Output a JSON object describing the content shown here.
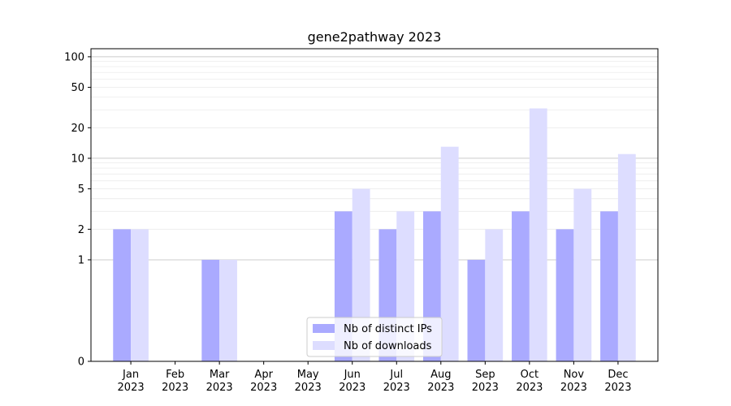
{
  "chart_data": {
    "type": "bar",
    "title": "gene2pathway 2023",
    "xlabel": "",
    "ylabel": "",
    "yscale": "symlog",
    "ylim": [
      0,
      120
    ],
    "yticks": [
      0,
      1,
      2,
      5,
      10,
      20,
      50,
      100
    ],
    "ytick_labels": [
      "0",
      "1",
      "2",
      "5",
      "10",
      "20",
      "50",
      "100"
    ],
    "categories": [
      "Jan\n2023",
      "Feb\n2023",
      "Mar\n2023",
      "Apr\n2023",
      "May\n2023",
      "Jun\n2023",
      "Jul\n2023",
      "Aug\n2023",
      "Sep\n2023",
      "Oct\n2023",
      "Nov\n2023",
      "Dec\n2023"
    ],
    "series": [
      {
        "name": "Nb of distinct IPs",
        "color": "#aaaaff",
        "values": [
          2,
          0,
          1,
          0,
          0,
          3,
          2,
          3,
          1,
          3,
          2,
          3
        ]
      },
      {
        "name": "Nb of downloads",
        "color": "#ddddff",
        "values": [
          2,
          0,
          1,
          0,
          0,
          5,
          3,
          13,
          2,
          31,
          5,
          11
        ]
      }
    ],
    "legend_position": "lower center",
    "grid": "horizontal"
  }
}
